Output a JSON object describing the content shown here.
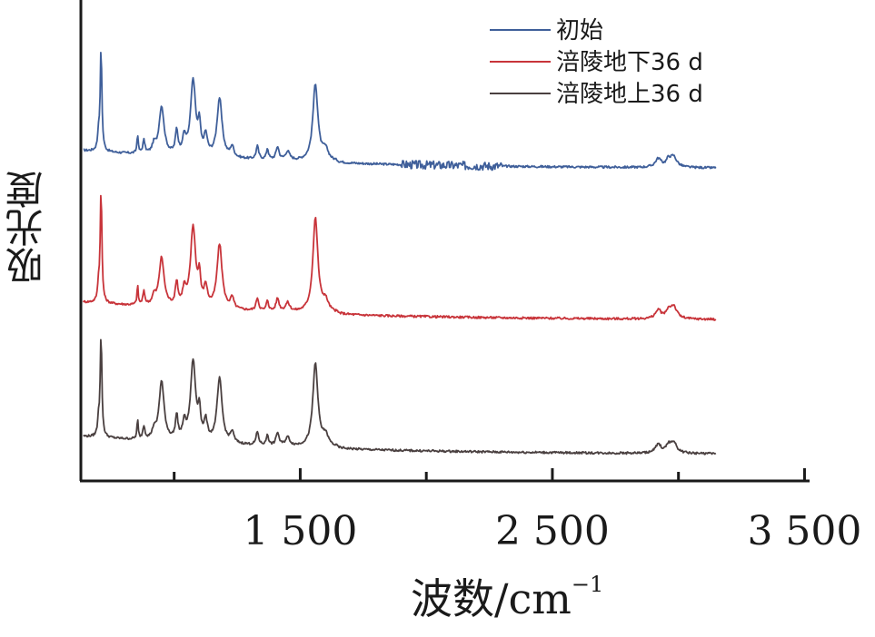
{
  "chart_data": {
    "type": "line",
    "title": "",
    "xlabel_main": "波数/cm",
    "xlabel_sup": "−1",
    "ylabel": "吸光度",
    "xlim": [
      630,
      3520
    ],
    "x_ticks": [
      {
        "value": 1500,
        "label": "1 500"
      },
      {
        "value": 2500,
        "label": "2 500"
      },
      {
        "value": 3500,
        "label": "3 500"
      }
    ],
    "legend_position": "top-right",
    "series": [
      {
        "name": "初始",
        "color": "#3f5f9a",
        "offset": 2.0,
        "peaks": [
          {
            "x": 710,
            "y": 0.95
          },
          {
            "x": 950,
            "y": 0.45
          },
          {
            "x": 1075,
            "y": 0.7
          },
          {
            "x": 1180,
            "y": 0.55
          },
          {
            "x": 1560,
            "y": 0.72
          },
          {
            "x": 2980,
            "y": 0.1
          }
        ]
      },
      {
        "name": "涪陵地下36 d",
        "color": "#c8343a",
        "offset": 1.0,
        "peaks": [
          {
            "x": 710,
            "y": 1.05
          },
          {
            "x": 950,
            "y": 0.45
          },
          {
            "x": 1075,
            "y": 0.75
          },
          {
            "x": 1180,
            "y": 0.6
          },
          {
            "x": 1560,
            "y": 0.88
          },
          {
            "x": 2980,
            "y": 0.12
          }
        ]
      },
      {
        "name": "涪陵地上36 d",
        "color": "#4a4040",
        "offset": 0.0,
        "peaks": [
          {
            "x": 710,
            "y": 0.95
          },
          {
            "x": 950,
            "y": 0.55
          },
          {
            "x": 1075,
            "y": 0.75
          },
          {
            "x": 1180,
            "y": 0.6
          },
          {
            "x": 1560,
            "y": 0.78
          },
          {
            "x": 2980,
            "y": 0.1
          }
        ]
      }
    ]
  }
}
